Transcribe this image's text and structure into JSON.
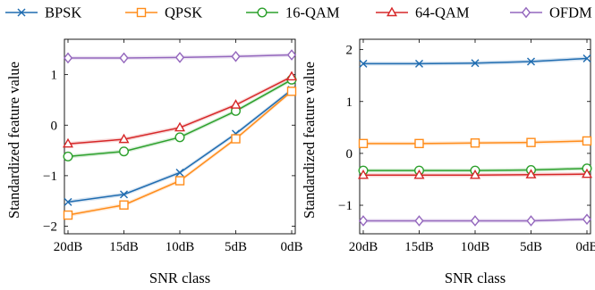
{
  "legend": [
    {
      "name": "BPSK",
      "color": "#1f6cb0",
      "marker": "x-cross"
    },
    {
      "name": "QPSK",
      "color": "#ff8c1a",
      "marker": "square"
    },
    {
      "name": "16-QAM",
      "color": "#2ca02c",
      "marker": "circle"
    },
    {
      "name": "64-QAM",
      "color": "#d62728",
      "marker": "triangle"
    },
    {
      "name": "OFDM",
      "color": "#9467bd",
      "marker": "diamond"
    }
  ],
  "chart_data": [
    {
      "type": "line",
      "xlabel": "SNR class",
      "ylabel": "Standardized feature value",
      "categories": [
        "20dB",
        "15dB",
        "10dB",
        "5dB",
        "0dB"
      ],
      "ylim": [
        -2.15,
        1.7
      ],
      "yticks": [
        -2,
        -1,
        0,
        1
      ],
      "ytick_labels": [
        "−2",
        "−1",
        "0",
        "1"
      ],
      "grid": false,
      "series": [
        {
          "name": "BPSK",
          "values": [
            -1.52,
            -1.37,
            -0.94,
            -0.17,
            0.7
          ]
        },
        {
          "name": "QPSK",
          "values": [
            -1.78,
            -1.58,
            -1.1,
            -0.27,
            0.67
          ]
        },
        {
          "name": "16-QAM",
          "values": [
            -0.62,
            -0.52,
            -0.24,
            0.28,
            0.9
          ]
        },
        {
          "name": "64-QAM",
          "values": [
            -0.37,
            -0.28,
            -0.05,
            0.4,
            0.96
          ]
        },
        {
          "name": "OFDM",
          "values": [
            1.33,
            1.33,
            1.34,
            1.36,
            1.39
          ]
        }
      ]
    },
    {
      "type": "line",
      "xlabel": "SNR class",
      "ylabel": "Standardized feature value",
      "categories": [
        "20dB",
        "15dB",
        "10dB",
        "5dB",
        "0dB"
      ],
      "ylim": [
        -1.55,
        2.2
      ],
      "yticks": [
        -1,
        0,
        1,
        2
      ],
      "ytick_labels": [
        "−1",
        "0",
        "1",
        "2"
      ],
      "grid": false,
      "series": [
        {
          "name": "BPSK",
          "values": [
            1.73,
            1.73,
            1.74,
            1.77,
            1.83
          ]
        },
        {
          "name": "QPSK",
          "values": [
            0.19,
            0.19,
            0.2,
            0.21,
            0.24
          ]
        },
        {
          "name": "16-QAM",
          "values": [
            -0.33,
            -0.33,
            -0.33,
            -0.32,
            -0.29
          ]
        },
        {
          "name": "64-QAM",
          "values": [
            -0.42,
            -0.42,
            -0.42,
            -0.41,
            -0.4
          ]
        },
        {
          "name": "OFDM",
          "values": [
            -1.3,
            -1.3,
            -1.3,
            -1.3,
            -1.27
          ]
        }
      ]
    }
  ]
}
